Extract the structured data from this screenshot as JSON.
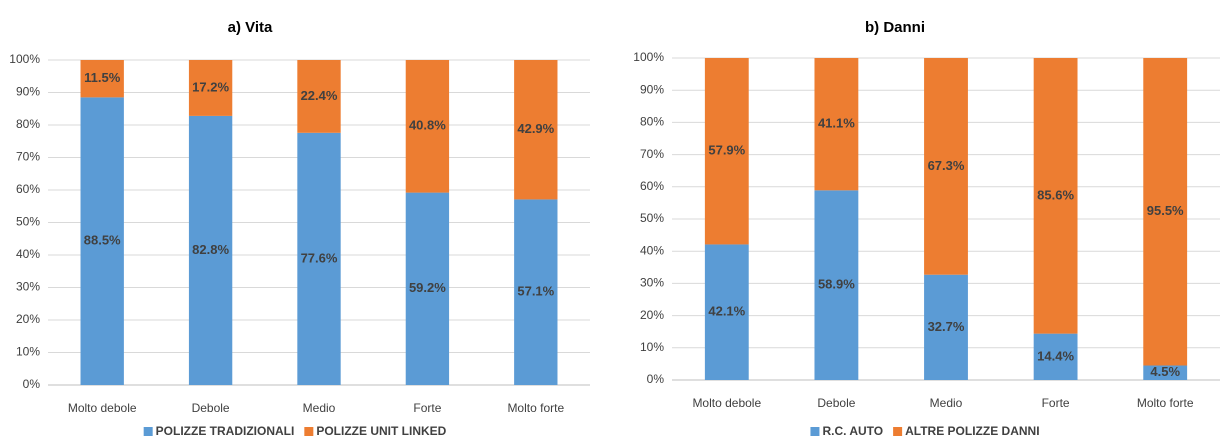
{
  "chart_data": [
    {
      "type": "bar",
      "stacked": true,
      "title": "a) Vita",
      "categories": [
        "Molto debole",
        "Debole",
        "Medio",
        "Forte",
        "Molto forte"
      ],
      "series": [
        {
          "name": "POLIZZE TRADIZIONALI",
          "color": "#5b9bd5",
          "values": [
            88.5,
            82.8,
            77.6,
            59.2,
            57.1
          ],
          "value_labels": [
            "88.5%",
            "82.8%",
            "77.6%",
            "59.2%",
            "57.1%"
          ]
        },
        {
          "name": "POLIZZE UNIT LINKED",
          "color": "#ed7d31",
          "values": [
            11.5,
            17.2,
            22.4,
            40.8,
            42.9
          ],
          "value_labels": [
            "11.5%",
            "17.2%",
            "22.4%",
            "40.8%",
            "42.9%"
          ]
        }
      ],
      "ylim": [
        0,
        100
      ],
      "yticks": [
        {
          "value": 0,
          "label": "0%"
        },
        {
          "value": 10,
          "label": "10%"
        },
        {
          "value": 20,
          "label": "20%"
        },
        {
          "value": 30,
          "label": "30%"
        },
        {
          "value": 40,
          "label": "40%"
        },
        {
          "value": 50,
          "label": "50%"
        },
        {
          "value": 60,
          "label": "60%"
        },
        {
          "value": 70,
          "label": "70%"
        },
        {
          "value": 80,
          "label": "80%"
        },
        {
          "value": 90,
          "label": "90%"
        },
        {
          "value": 100,
          "label": "100%"
        }
      ],
      "grid": true,
      "legend": "bottom"
    },
    {
      "type": "bar",
      "stacked": true,
      "title": "b) Danni",
      "categories": [
        "Molto debole",
        "Debole",
        "Medio",
        "Forte",
        "Molto forte"
      ],
      "series": [
        {
          "name": "R.C. AUTO",
          "color": "#5b9bd5",
          "values": [
            42.1,
            58.9,
            32.7,
            14.4,
            4.5
          ],
          "value_labels": [
            "42.1%",
            "58.9%",
            "32.7%",
            "14.4%",
            "4.5%"
          ]
        },
        {
          "name": "ALTRE POLIZZE DANNI",
          "color": "#ed7d31",
          "values": [
            57.9,
            41.1,
            67.3,
            85.6,
            95.5
          ],
          "value_labels": [
            "57.9%",
            "41.1%",
            "67.3%",
            "85.6%",
            "95.5%"
          ]
        }
      ],
      "ylim": [
        0,
        100
      ],
      "yticks": [
        {
          "value": 0,
          "label": "0%"
        },
        {
          "value": 10,
          "label": "10%"
        },
        {
          "value": 20,
          "label": "20%"
        },
        {
          "value": 30,
          "label": "30%"
        },
        {
          "value": 40,
          "label": "40%"
        },
        {
          "value": 50,
          "label": "50%"
        },
        {
          "value": 60,
          "label": "60%"
        },
        {
          "value": 70,
          "label": "70%"
        },
        {
          "value": 80,
          "label": "80%"
        },
        {
          "value": 90,
          "label": "90%"
        },
        {
          "value": 100,
          "label": "100%"
        }
      ],
      "grid": true,
      "legend": "bottom"
    }
  ]
}
